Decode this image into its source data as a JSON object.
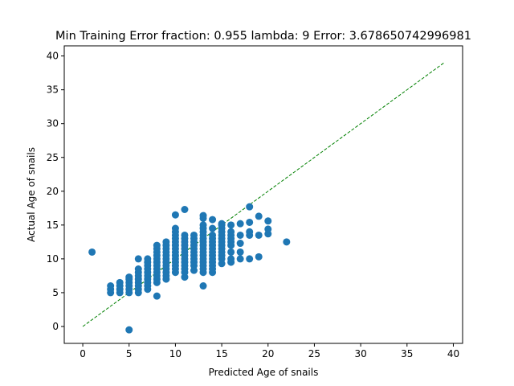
{
  "chart_data": {
    "type": "scatter",
    "title": "Min Training Error fraction: 0.955 lambda: 9 Error: 3.678650742996981",
    "xlabel": "Predicted Age of snails",
    "ylabel": "Actual Age of snails",
    "xlim": [
      -2,
      41
    ],
    "ylim": [
      -2.5,
      41.5
    ],
    "xticks": [
      0,
      5,
      10,
      15,
      20,
      25,
      30,
      35,
      40
    ],
    "yticks": [
      0,
      5,
      10,
      15,
      20,
      25,
      30,
      35,
      40
    ],
    "grid": false,
    "point_color": "#1f77b4",
    "reference_line": {
      "x": [
        0,
        39
      ],
      "y": [
        0,
        39
      ],
      "color": "#008000",
      "style": "dashed"
    },
    "points": [
      [
        1,
        11
      ],
      [
        5,
        -0.5
      ],
      [
        3,
        5
      ],
      [
        3,
        5.5
      ],
      [
        3,
        6
      ],
      [
        4,
        5
      ],
      [
        4,
        5.5
      ],
      [
        4,
        6
      ],
      [
        4,
        6.5
      ],
      [
        5,
        5
      ],
      [
        5,
        5.5
      ],
      [
        5,
        6
      ],
      [
        5,
        6.5
      ],
      [
        5,
        7
      ],
      [
        5,
        7.3
      ],
      [
        6,
        5
      ],
      [
        6,
        5.5
      ],
      [
        6,
        6
      ],
      [
        6,
        6.5
      ],
      [
        6,
        7
      ],
      [
        6,
        7.5
      ],
      [
        6,
        8
      ],
      [
        6,
        8.5
      ],
      [
        6,
        10
      ],
      [
        7,
        5.5
      ],
      [
        7,
        6
      ],
      [
        7,
        6.5
      ],
      [
        7,
        7
      ],
      [
        7,
        7.5
      ],
      [
        7,
        8
      ],
      [
        7,
        8.5
      ],
      [
        7,
        9
      ],
      [
        7,
        9.5
      ],
      [
        7,
        10
      ],
      [
        8,
        4.5
      ],
      [
        8,
        6.5
      ],
      [
        8,
        7
      ],
      [
        8,
        7.5
      ],
      [
        8,
        8
      ],
      [
        8,
        8.5
      ],
      [
        8,
        9
      ],
      [
        8,
        9.5
      ],
      [
        8,
        10
      ],
      [
        8,
        10.5
      ],
      [
        8,
        11
      ],
      [
        8,
        11.5
      ],
      [
        8,
        12
      ],
      [
        9,
        7
      ],
      [
        9,
        7.5
      ],
      [
        9,
        8
      ],
      [
        9,
        8.5
      ],
      [
        9,
        9
      ],
      [
        9,
        9.5
      ],
      [
        9,
        10
      ],
      [
        9,
        10.5
      ],
      [
        9,
        11
      ],
      [
        9,
        11.5
      ],
      [
        9,
        12
      ],
      [
        9,
        12.5
      ],
      [
        10,
        8
      ],
      [
        10,
        8.5
      ],
      [
        10,
        9
      ],
      [
        10,
        9.5
      ],
      [
        10,
        10
      ],
      [
        10,
        10.5
      ],
      [
        10,
        11
      ],
      [
        10,
        11.5
      ],
      [
        10,
        12
      ],
      [
        10,
        12.5
      ],
      [
        10,
        13
      ],
      [
        10,
        13.5
      ],
      [
        10,
        14
      ],
      [
        10,
        14.5
      ],
      [
        10,
        16.5
      ],
      [
        11,
        7.3
      ],
      [
        11,
        8
      ],
      [
        11,
        8.5
      ],
      [
        11,
        9
      ],
      [
        11,
        9.5
      ],
      [
        11,
        10
      ],
      [
        11,
        10.5
      ],
      [
        11,
        11
      ],
      [
        11,
        11.5
      ],
      [
        11,
        12
      ],
      [
        11,
        12.5
      ],
      [
        11,
        13
      ],
      [
        11,
        13.5
      ],
      [
        11,
        17.3
      ],
      [
        12,
        8.3
      ],
      [
        12,
        9
      ],
      [
        12,
        9.5
      ],
      [
        12,
        10
      ],
      [
        12,
        10.5
      ],
      [
        12,
        11
      ],
      [
        12,
        11.5
      ],
      [
        12,
        12
      ],
      [
        12,
        12.5
      ],
      [
        12,
        13
      ],
      [
        12,
        13.5
      ],
      [
        13,
        6
      ],
      [
        13,
        8
      ],
      [
        13,
        8.5
      ],
      [
        13,
        9
      ],
      [
        13,
        9.5
      ],
      [
        13,
        10
      ],
      [
        13,
        10.5
      ],
      [
        13,
        11
      ],
      [
        13,
        11.5
      ],
      [
        13,
        12
      ],
      [
        13,
        12.5
      ],
      [
        13,
        13
      ],
      [
        13,
        13.5
      ],
      [
        13,
        14
      ],
      [
        13,
        14.5
      ],
      [
        13,
        15
      ],
      [
        13,
        16
      ],
      [
        13,
        16.4
      ],
      [
        14,
        8
      ],
      [
        14,
        8.5
      ],
      [
        14,
        9
      ],
      [
        14,
        9.5
      ],
      [
        14,
        10
      ],
      [
        14,
        10.5
      ],
      [
        14,
        11
      ],
      [
        14,
        11.5
      ],
      [
        14,
        12
      ],
      [
        14,
        12.5
      ],
      [
        14,
        13
      ],
      [
        14,
        13.5
      ],
      [
        14,
        14.5
      ],
      [
        14,
        15.8
      ],
      [
        15,
        9.3
      ],
      [
        15,
        10
      ],
      [
        15,
        10.5
      ],
      [
        15,
        11
      ],
      [
        15,
        11.5
      ],
      [
        15,
        12
      ],
      [
        15,
        12.5
      ],
      [
        15,
        13
      ],
      [
        15,
        13.5
      ],
      [
        15,
        14
      ],
      [
        15,
        14.5
      ],
      [
        15,
        15
      ],
      [
        15,
        15.2
      ],
      [
        16,
        9.5
      ],
      [
        16,
        10
      ],
      [
        16,
        11
      ],
      [
        16,
        12
      ],
      [
        16,
        12.5
      ],
      [
        16,
        13
      ],
      [
        16,
        13.5
      ],
      [
        16,
        14
      ],
      [
        16,
        15
      ],
      [
        17,
        10
      ],
      [
        17,
        11
      ],
      [
        17,
        12.3
      ],
      [
        17,
        13.5
      ],
      [
        17,
        15.2
      ],
      [
        18,
        10
      ],
      [
        18,
        13.5
      ],
      [
        18,
        14
      ],
      [
        18,
        15.4
      ],
      [
        18,
        17.7
      ],
      [
        19,
        10.3
      ],
      [
        19,
        13.5
      ],
      [
        19,
        16.3
      ],
      [
        20,
        13.7
      ],
      [
        20,
        14.4
      ],
      [
        20,
        15.6
      ],
      [
        22,
        12.5
      ]
    ]
  }
}
